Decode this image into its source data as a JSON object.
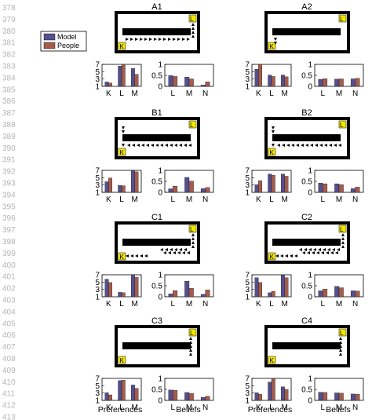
{
  "line_numbers": [
    "378",
    "379",
    "380",
    "381",
    "382",
    "383",
    "384",
    "385",
    "386",
    "387",
    "388",
    "389",
    "390",
    "391",
    "392",
    "393",
    "394",
    "395",
    "396",
    "397",
    "398",
    "399",
    "400",
    "401",
    "402",
    "403",
    "404",
    "405",
    "406",
    "407",
    "408",
    "409",
    "410",
    "411",
    "412",
    "413"
  ],
  "legend": {
    "entries": [
      {
        "label": "Model",
        "color": "#54508f"
      },
      {
        "label": "People",
        "color": "#a45c4c"
      }
    ]
  },
  "footer_labels": {
    "preferences": "Preferences",
    "beliefs": "Beliefs"
  },
  "chart_data": [
    {
      "type": "bar",
      "title": "A1",
      "preferences": {
        "categories": [
          "K",
          "L",
          "M"
        ],
        "ylim": [
          1,
          7
        ],
        "yticks": [
          1,
          3,
          5,
          7
        ],
        "series": [
          {
            "name": "Model",
            "values": [
              2.2,
              6.5,
              5.9
            ]
          },
          {
            "name": "People",
            "values": [
              1.9,
              6.8,
              4.3
            ]
          }
        ]
      },
      "beliefs": {
        "categories": [
          "L",
          "M",
          "N"
        ],
        "ylim": [
          0,
          1
        ],
        "yticks": [
          0,
          0.5,
          1
        ],
        "series": [
          {
            "name": "Model",
            "values": [
              0.49,
              0.42,
              0.06
            ]
          },
          {
            "name": "People",
            "values": [
              0.45,
              0.34,
              0.21
            ]
          }
        ]
      }
    },
    {
      "type": "bar",
      "title": "A2",
      "preferences": {
        "categories": [
          "K",
          "L",
          "M"
        ],
        "ylim": [
          1,
          7
        ],
        "yticks": [
          1,
          3,
          5,
          7
        ],
        "series": [
          {
            "name": "Model",
            "values": [
              5.7,
              4.1,
              4.1
            ]
          },
          {
            "name": "People",
            "values": [
              7.0,
              3.7,
              3.6
            ]
          }
        ]
      },
      "beliefs": {
        "categories": [
          "L",
          "M",
          "N"
        ],
        "ylim": [
          0,
          1
        ],
        "yticks": [
          0,
          0.5,
          1
        ],
        "series": [
          {
            "name": "Model",
            "values": [
              0.32,
              0.33,
              0.34
            ]
          },
          {
            "name": "People",
            "values": [
              0.35,
              0.34,
              0.37
            ]
          }
        ]
      }
    },
    {
      "type": "bar",
      "title": "B1",
      "preferences": {
        "categories": [
          "K",
          "L",
          "M"
        ],
        "ylim": [
          1,
          7
        ],
        "yticks": [
          1,
          3,
          5,
          7
        ],
        "series": [
          {
            "name": "Model",
            "values": [
              3.9,
              2.9,
              7.3
            ]
          },
          {
            "name": "People",
            "values": [
              4.9,
              2.8,
              6.6
            ]
          }
        ]
      },
      "beliefs": {
        "categories": [
          "L",
          "M",
          "N"
        ],
        "ylim": [
          0,
          1
        ],
        "yticks": [
          0,
          0.5,
          1
        ],
        "series": [
          {
            "name": "Model",
            "values": [
              0.16,
              0.68,
              0.17
            ]
          },
          {
            "name": "People",
            "values": [
              0.28,
              0.51,
              0.22
            ]
          }
        ]
      }
    },
    {
      "type": "bar",
      "title": "B2",
      "preferences": {
        "categories": [
          "K",
          "L",
          "M"
        ],
        "ylim": [
          1,
          7
        ],
        "yticks": [
          1,
          3,
          5,
          7
        ],
        "series": [
          {
            "name": "Model",
            "values": [
              3.1,
              6.0,
              6.0
            ]
          },
          {
            "name": "People",
            "values": [
              4.2,
              5.7,
              5.4
            ]
          }
        ]
      },
      "beliefs": {
        "categories": [
          "L",
          "M",
          "N"
        ],
        "ylim": [
          0,
          1
        ],
        "yticks": [
          0,
          0.5,
          1
        ],
        "series": [
          {
            "name": "Model",
            "values": [
              0.42,
              0.39,
              0.17
            ]
          },
          {
            "name": "People",
            "values": [
              0.39,
              0.35,
              0.24
            ]
          }
        ]
      }
    },
    {
      "type": "bar",
      "title": "C1",
      "preferences": {
        "categories": [
          "K",
          "L",
          "M"
        ],
        "ylim": [
          1,
          7
        ],
        "yticks": [
          1,
          3,
          5,
          7
        ],
        "series": [
          {
            "name": "Model",
            "values": [
              5.8,
              2.2,
              7.7
            ]
          },
          {
            "name": "People",
            "values": [
              4.9,
              2.1,
              6.3
            ]
          }
        ]
      },
      "beliefs": {
        "categories": [
          "L",
          "M",
          "N"
        ],
        "ylim": [
          0,
          1
        ],
        "yticks": [
          0,
          0.5,
          1
        ],
        "series": [
          {
            "name": "Model",
            "values": [
              0.13,
              0.71,
              0.11
            ]
          },
          {
            "name": "People",
            "values": [
              0.28,
              0.39,
              0.31
            ]
          }
        ]
      }
    },
    {
      "type": "bar",
      "title": "C2",
      "preferences": {
        "categories": [
          "K",
          "L",
          "M"
        ],
        "ylim": [
          1,
          7
        ],
        "yticks": [
          1,
          3,
          5,
          7
        ],
        "series": [
          {
            "name": "Model",
            "values": [
              6.2,
              2.1,
              7.1
            ]
          },
          {
            "name": "People",
            "values": [
              4.9,
              2.5,
              6.2
            ]
          }
        ]
      },
      "beliefs": {
        "categories": [
          "L",
          "M",
          "N"
        ],
        "ylim": [
          0,
          1
        ],
        "yticks": [
          0,
          0.5,
          1
        ],
        "series": [
          {
            "name": "Model",
            "values": [
              0.27,
              0.47,
              0.27
            ]
          },
          {
            "name": "People",
            "values": [
              0.35,
              0.41,
              0.26
            ]
          }
        ]
      }
    },
    {
      "type": "bar",
      "title": "C3",
      "preferences": {
        "categories": [
          "K",
          "L",
          "M"
        ],
        "ylim": [
          1,
          7
        ],
        "yticks": [
          1,
          3,
          5,
          7
        ],
        "series": [
          {
            "name": "Model",
            "values": [
              3.1,
              6.4,
              5.2
            ]
          },
          {
            "name": "People",
            "values": [
              2.5,
              6.5,
              4.3
            ]
          }
        ]
      },
      "beliefs": {
        "categories": [
          "L",
          "M",
          "N"
        ],
        "ylim": [
          0,
          1
        ],
        "yticks": [
          0,
          0.5,
          1
        ],
        "series": [
          {
            "name": "Model",
            "values": [
              0.47,
              0.36,
              0.14
            ]
          },
          {
            "name": "People",
            "values": [
              0.46,
              0.32,
              0.19
            ]
          }
        ]
      }
    },
    {
      "type": "bar",
      "title": "C4",
      "preferences": {
        "categories": [
          "K",
          "L",
          "M"
        ],
        "ylim": [
          1,
          7
        ],
        "yticks": [
          1,
          3,
          5,
          7
        ],
        "series": [
          {
            "name": "Model",
            "values": [
              3.1,
              6.0,
              4.7
            ]
          },
          {
            "name": "People",
            "values": [
              2.7,
              6.8,
              4.0
            ]
          }
        ]
      },
      "beliefs": {
        "categories": [
          "L",
          "M",
          "N"
        ],
        "ylim": [
          0,
          1
        ],
        "yticks": [
          0,
          0.5,
          1
        ],
        "series": [
          {
            "name": "Model",
            "values": [
              0.37,
              0.34,
              0.29
            ]
          },
          {
            "name": "People",
            "values": [
              0.36,
              0.33,
              0.28
            ]
          }
        ]
      }
    }
  ],
  "scenarios": [
    {
      "title": "A1",
      "k_corner": "bottom-left",
      "l_corner": "top-right"
    },
    {
      "title": "A2",
      "k_corner": "bottom-left",
      "l_corner": "top-right"
    },
    {
      "title": "B1",
      "k_corner": "bottom-left",
      "l_corner": "top-right"
    },
    {
      "title": "B2",
      "k_corner": "bottom-left",
      "l_corner": "top-right"
    },
    {
      "title": "C1",
      "k_corner": "bottom-left",
      "l_corner": "top-right"
    },
    {
      "title": "C2",
      "k_corner": "bottom-left",
      "l_corner": "top-right"
    },
    {
      "title": "C3",
      "k_corner": "bottom-left",
      "l_corner": "top-right"
    },
    {
      "title": "C4",
      "k_corner": "bottom-left",
      "l_corner": "top-right"
    }
  ],
  "maze_labels": {
    "k": "K",
    "l": "L"
  }
}
